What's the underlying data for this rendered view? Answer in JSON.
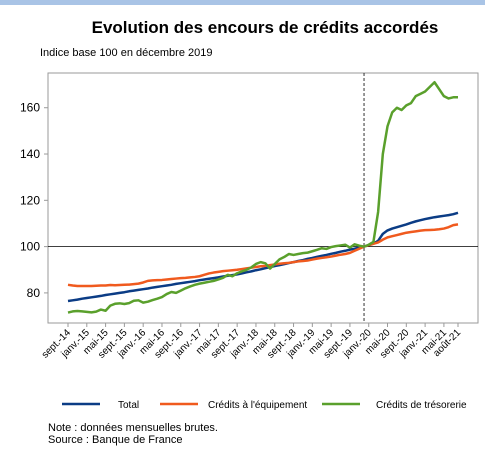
{
  "chart_data": {
    "type": "line",
    "title": "Evolution des encours de crédits accordés",
    "subtitle": "Indice base 100 en décembre 2019",
    "categories": [
      "sept.-14",
      null,
      null,
      null,
      "janv.-15",
      null,
      null,
      null,
      "mai-15",
      null,
      null,
      null,
      "sept.-15",
      null,
      null,
      null,
      "janv.-16",
      null,
      null,
      null,
      "mai-16",
      null,
      null,
      null,
      "sept.-16",
      null,
      null,
      null,
      "janv.-17",
      null,
      null,
      null,
      "mai-17",
      null,
      null,
      null,
      "sept.-17",
      null,
      null,
      null,
      "janv.-18",
      null,
      null,
      null,
      "mai-18",
      null,
      null,
      null,
      "sept.-18",
      null,
      null,
      null,
      "janv.-19",
      null,
      null,
      null,
      "mai-19",
      null,
      null,
      null,
      "sept.-19",
      null,
      null,
      null,
      "janv.-20",
      null,
      null,
      null,
      "mai-20",
      null,
      null,
      null,
      "sept.-20",
      null,
      null,
      null,
      "janv.-21",
      null,
      null,
      null,
      "mai-21",
      null,
      null,
      "août-21"
    ],
    "series": [
      {
        "name": "Total",
        "color": "#0b3c85",
        "values": [
          76.5,
          76.8,
          77.1,
          77.5,
          77.8,
          78.1,
          78.4,
          78.7,
          79.1,
          79.4,
          79.7,
          80.0,
          80.3,
          80.7,
          81.0,
          81.3,
          81.6,
          81.9,
          82.3,
          82.6,
          82.9,
          83.2,
          83.5,
          83.9,
          84.2,
          84.5,
          84.8,
          85.1,
          85.5,
          85.8,
          86.1,
          86.4,
          86.7,
          87.1,
          87.4,
          87.7,
          88.0,
          88.4,
          88.9,
          89.3,
          89.8,
          90.2,
          90.7,
          91.1,
          91.6,
          92.0,
          92.4,
          92.9,
          93.3,
          93.8,
          94.2,
          94.7,
          95.1,
          95.6,
          96.0,
          96.4,
          96.9,
          97.3,
          97.8,
          98.2,
          98.7,
          99.1,
          99.6,
          100.0,
          100.6,
          101.3,
          102.5,
          105.5,
          107.0,
          107.8,
          108.4,
          109.0,
          109.6,
          110.3,
          110.9,
          111.4,
          111.9,
          112.3,
          112.7,
          113.0,
          113.3,
          113.6,
          114.0,
          114.6
        ]
      },
      {
        "name": "Crédits à l'équipement",
        "color": "#f05a1e",
        "values": [
          83.5,
          83.2,
          83.0,
          83.0,
          83.0,
          83.0,
          83.1,
          83.2,
          83.2,
          83.4,
          83.3,
          83.4,
          83.5,
          83.6,
          83.8,
          84.0,
          84.5,
          85.2,
          85.4,
          85.5,
          85.6,
          85.8,
          86.0,
          86.2,
          86.4,
          86.5,
          86.7,
          86.9,
          87.2,
          87.8,
          88.4,
          88.8,
          89.1,
          89.4,
          89.6,
          89.8,
          90.0,
          90.3,
          90.6,
          90.9,
          91.2,
          91.5,
          91.7,
          92.0,
          92.3,
          92.6,
          92.8,
          93.0,
          93.3,
          93.6,
          93.8,
          94.0,
          94.4,
          94.8,
          95.1,
          95.4,
          95.7,
          96.1,
          96.5,
          96.8,
          97.3,
          98.2,
          99.1,
          100.0,
          100.6,
          101.2,
          101.8,
          103.0,
          104.0,
          104.5,
          105.0,
          105.5,
          106.0,
          106.3,
          106.6,
          106.9,
          107.1,
          107.2,
          107.3,
          107.5,
          107.8,
          108.4,
          109.3,
          109.6
        ]
      },
      {
        "name": "Crédits de trésorerie",
        "color": "#5aa02c",
        "values": [
          71.5,
          72.0,
          72.2,
          72.0,
          71.8,
          71.6,
          71.9,
          72.8,
          72.3,
          74.5,
          75.3,
          75.5,
          75.2,
          75.6,
          76.6,
          76.8,
          75.8,
          76.2,
          76.9,
          77.5,
          78.2,
          79.5,
          80.4,
          80.0,
          81.0,
          82.0,
          82.8,
          83.5,
          84.0,
          84.4,
          84.8,
          85.2,
          85.8,
          86.5,
          87.8,
          87.2,
          88.5,
          89.3,
          90.0,
          91.0,
          92.5,
          93.3,
          92.8,
          90.5,
          92.5,
          94.5,
          95.5,
          96.8,
          96.4,
          96.8,
          97.2,
          97.4,
          98.0,
          98.6,
          99.3,
          99.0,
          99.8,
          100.2,
          100.5,
          100.8,
          99.6,
          101.0,
          100.4,
          100.0,
          100.8,
          102.0,
          115.0,
          140.0,
          152.0,
          158.0,
          160.0,
          159.0,
          161.0,
          162.0,
          165.0,
          166.0,
          167.0,
          169.0,
          171.0,
          168.0,
          165.0,
          164.0,
          164.5,
          164.5
        ]
      }
    ],
    "ylim": [
      67,
      175
    ],
    "yticks": [
      80,
      100,
      120,
      140,
      160
    ],
    "hline": 100,
    "vline": 63,
    "notes": [
      "Note : données mensuelles brutes.",
      "Source : Banque de France"
    ]
  }
}
